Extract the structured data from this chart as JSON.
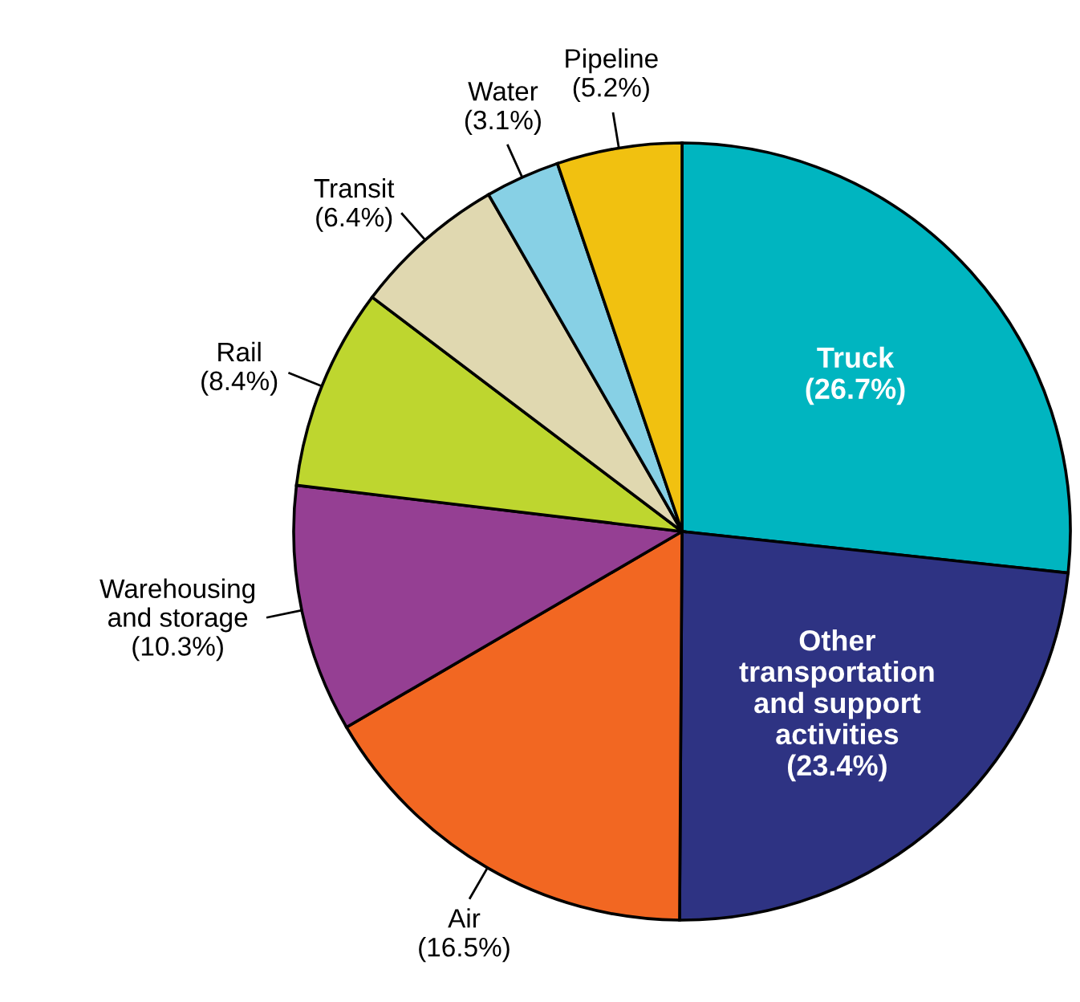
{
  "chart_data": {
    "type": "pie",
    "categories": [
      "Truck",
      "Other\ntransportation\nand support\nactivities",
      "Air",
      "Warehousing\nand storage",
      "Rail",
      "Transit",
      "Water",
      "Pipeline"
    ],
    "values": [
      26.7,
      23.4,
      16.5,
      10.3,
      8.4,
      6.4,
      3.1,
      5.2
    ],
    "value_labels": [
      "(26.7%)",
      "(23.4%)",
      "(16.5%)",
      "(10.3%)",
      "(8.4%)",
      "(6.4%)",
      "(3.1%)",
      "(5.2%)"
    ],
    "colors": [
      "#00b5c0",
      "#2e3383",
      "#f26722",
      "#953f93",
      "#bed62f",
      "#e0d8b0",
      "#87d0e5",
      "#f1c110"
    ],
    "legend": false
  }
}
